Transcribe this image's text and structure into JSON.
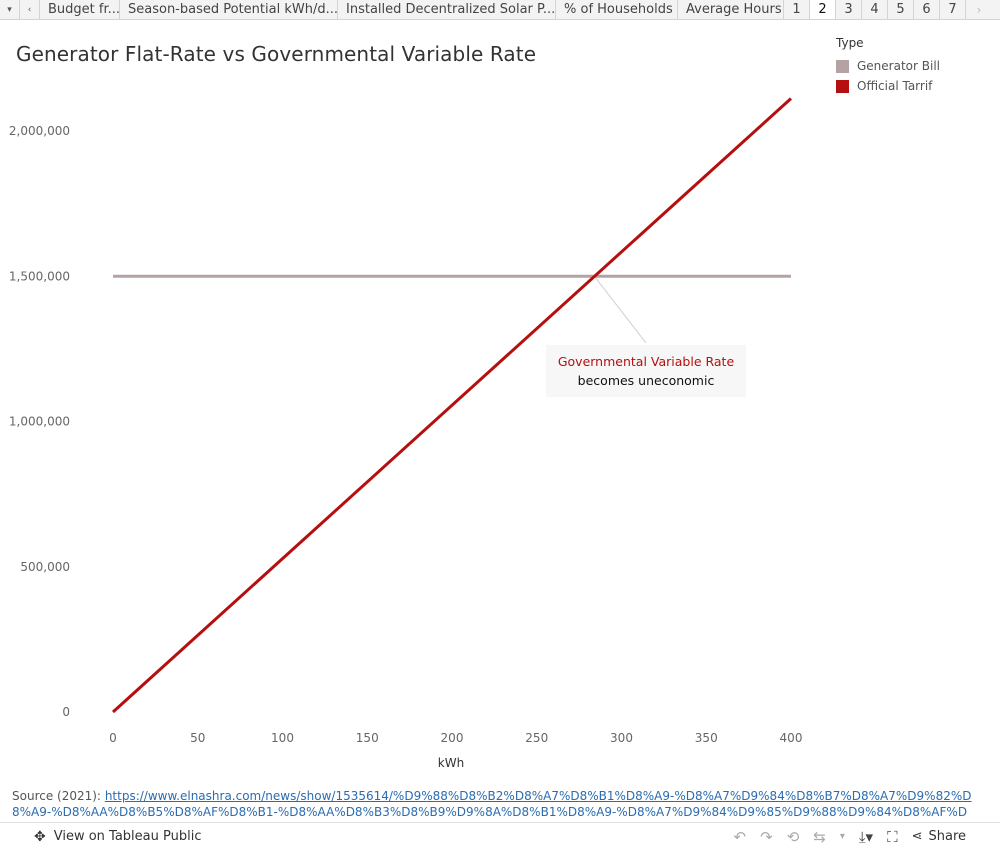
{
  "tabs": {
    "nav_menu": "▾",
    "nav_prev": "‹",
    "nav_next": "›",
    "items": [
      {
        "label": "Budget fr..."
      },
      {
        "label": "Season-based Potential kWh/d..."
      },
      {
        "label": "Installed Decentralized Solar P..."
      },
      {
        "label": "% of Households"
      },
      {
        "label": "Average Hours"
      }
    ],
    "numbers": [
      "1",
      "2",
      "3",
      "4",
      "5",
      "6",
      "7"
    ],
    "active_number": "2"
  },
  "title": "Generator Flat-Rate vs Governmental Variable Rate",
  "legend": {
    "title": "Type",
    "items": [
      {
        "label": "Generator Bill",
        "color": "#b5a3a3"
      },
      {
        "label": "Official Tarrif",
        "color": "#b50f0f"
      }
    ]
  },
  "chart_data": {
    "type": "line",
    "title": "Generator Flat-Rate vs Governmental Variable Rate",
    "xlabel": "kWh",
    "ylabel": "",
    "xlim": [
      0,
      400
    ],
    "ylim": [
      0,
      2100000
    ],
    "x_ticks": [
      0,
      50,
      100,
      150,
      200,
      250,
      300,
      350,
      400
    ],
    "y_ticks": [
      0,
      500000,
      1000000,
      1500000,
      2000000
    ],
    "y_tick_labels": [
      "0",
      "500,000",
      "1,000,000",
      "1,500,000",
      "2,000,000"
    ],
    "series": [
      {
        "name": "Generator Bill",
        "color": "#b5a3a3",
        "x": [
          0,
          400
        ],
        "y": [
          1500000,
          1500000
        ]
      },
      {
        "name": "Official Tarrif",
        "color": "#b50f0f",
        "x": [
          0,
          400
        ],
        "y": [
          0,
          2112000
        ]
      }
    ],
    "annotation": {
      "line1": "Governmental Variable Rate",
      "line2": "becomes uneconomic",
      "point_x": 284,
      "point_y": 1500000,
      "line1_color": "#b50f0f"
    }
  },
  "source": {
    "label": "Source (2021):",
    "url": "https://www.elnashra.com/news/show/1535614/%D9%88%D8%B2%D8%A7%D8%B1%D8%A9-%D8%A7%D9%84%D8%B7%D8%A7%D9%82%D8%A9-%D8%AA%D8%B5%D8%AF%D8%B1-%D8%AA%D8%B3%D8%B9%D9%8A%D8%B1%D8%A9-%D8%A7%D9%84%D9%85%D9%88%D9%84%D8%AF%D8%A7%D8%AA"
  },
  "footer": {
    "view_label": "View on Tableau Public",
    "share_label": "Share"
  }
}
